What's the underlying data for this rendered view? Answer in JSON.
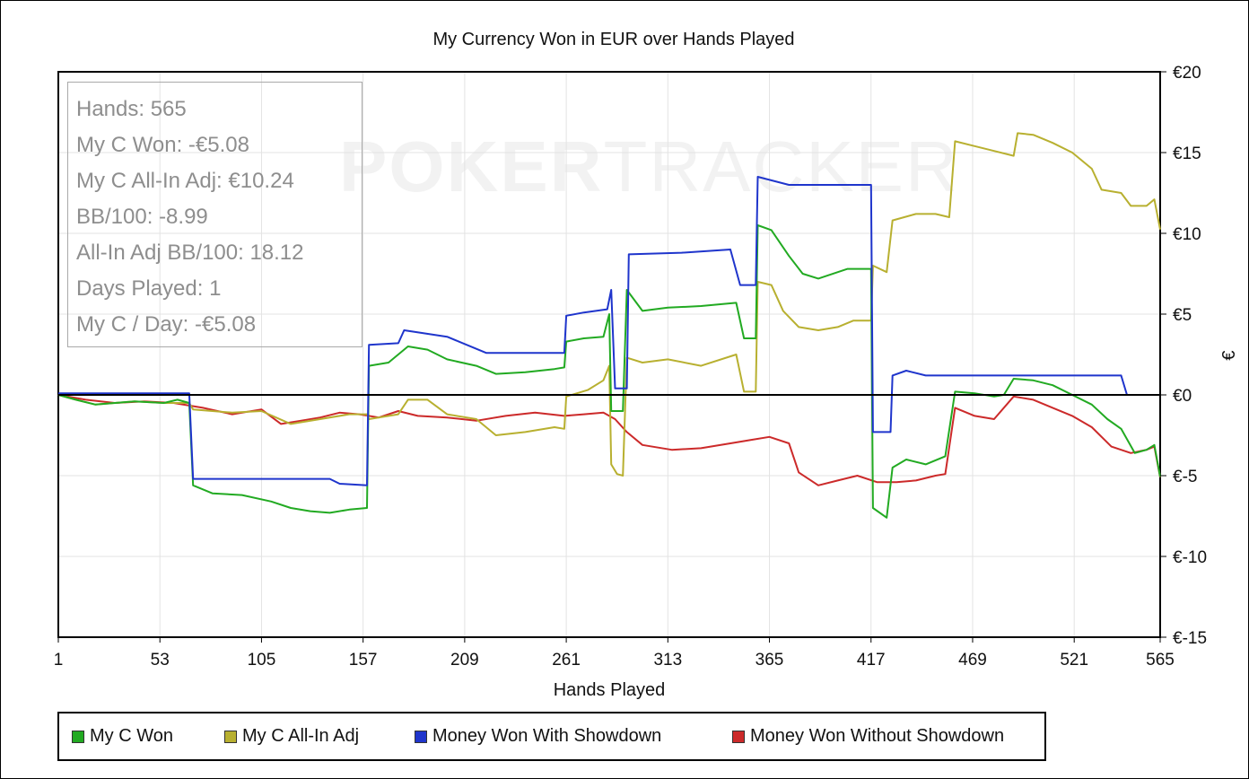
{
  "chart_data": {
    "type": "line",
    "title": "My Currency Won in EUR over Hands Played",
    "xlabel": "Hands Played",
    "ylabel": "€",
    "xlim": [
      1,
      565
    ],
    "ylim": [
      -15,
      20
    ],
    "x_ticks": [
      "1",
      "53",
      "105",
      "157",
      "209",
      "261",
      "313",
      "365",
      "417",
      "469",
      "521",
      "565"
    ],
    "y_ticks": [
      "€20",
      "€15",
      "€10",
      "€5",
      "€0",
      "€-5",
      "€-10",
      "€-15"
    ],
    "y_tick_values": [
      20,
      15,
      10,
      5,
      0,
      -5,
      -10,
      -15
    ],
    "x_tick_values": [
      1,
      53,
      105,
      157,
      209,
      261,
      313,
      365,
      417,
      469,
      521,
      565
    ],
    "grid": true,
    "legend_position": "bottom",
    "zero_line": true,
    "series": [
      {
        "name": "My C Won",
        "color": "#22aa22",
        "points": [
          [
            1,
            0
          ],
          [
            10,
            -0.3
          ],
          [
            20,
            -0.6
          ],
          [
            30,
            -0.5
          ],
          [
            40,
            -0.4
          ],
          [
            55,
            -0.5
          ],
          [
            62,
            -0.3
          ],
          [
            68,
            -0.5
          ],
          [
            70,
            -5.6
          ],
          [
            80,
            -6.1
          ],
          [
            95,
            -6.2
          ],
          [
            110,
            -6.6
          ],
          [
            120,
            -7.0
          ],
          [
            130,
            -7.2
          ],
          [
            140,
            -7.3
          ],
          [
            150,
            -7.1
          ],
          [
            159,
            -7.0
          ],
          [
            160,
            1.8
          ],
          [
            170,
            2.0
          ],
          [
            180,
            3.0
          ],
          [
            190,
            2.8
          ],
          [
            200,
            2.2
          ],
          [
            215,
            1.8
          ],
          [
            225,
            1.3
          ],
          [
            240,
            1.4
          ],
          [
            255,
            1.6
          ],
          [
            260,
            1.7
          ],
          [
            261,
            3.3
          ],
          [
            270,
            3.5
          ],
          [
            280,
            3.6
          ],
          [
            283,
            5.0
          ],
          [
            284,
            -1.0
          ],
          [
            290,
            -1.0
          ],
          [
            292,
            6.5
          ],
          [
            300,
            5.2
          ],
          [
            313,
            5.4
          ],
          [
            330,
            5.5
          ],
          [
            348,
            5.7
          ],
          [
            352,
            3.5
          ],
          [
            358,
            3.5
          ],
          [
            359,
            10.5
          ],
          [
            366,
            10.2
          ],
          [
            375,
            8.6
          ],
          [
            382,
            7.5
          ],
          [
            390,
            7.2
          ],
          [
            405,
            7.8
          ],
          [
            417,
            7.8
          ],
          [
            418,
            -7.0
          ],
          [
            425,
            -7.6
          ],
          [
            428,
            -4.5
          ],
          [
            435,
            -4.0
          ],
          [
            445,
            -4.3
          ],
          [
            455,
            -3.8
          ],
          [
            460,
            0.2
          ],
          [
            470,
            0.1
          ],
          [
            480,
            -0.1
          ],
          [
            485,
            0.0
          ],
          [
            490,
            1.0
          ],
          [
            500,
            0.9
          ],
          [
            510,
            0.6
          ],
          [
            520,
            0.0
          ],
          [
            530,
            -0.6
          ],
          [
            538,
            -1.5
          ],
          [
            545,
            -2.1
          ],
          [
            552,
            -3.6
          ],
          [
            558,
            -3.4
          ],
          [
            562,
            -3.1
          ],
          [
            565,
            -5.08
          ]
        ]
      },
      {
        "name": "My C All-In Adj",
        "color": "#b8b030",
        "points": [
          [
            1,
            0
          ],
          [
            10,
            -0.3
          ],
          [
            20,
            -0.6
          ],
          [
            30,
            -0.5
          ],
          [
            40,
            -0.4
          ],
          [
            55,
            -0.5
          ],
          [
            68,
            -0.5
          ],
          [
            70,
            -0.9
          ],
          [
            90,
            -1.1
          ],
          [
            105,
            -1.0
          ],
          [
            120,
            -1.8
          ],
          [
            135,
            -1.5
          ],
          [
            150,
            -1.2
          ],
          [
            159,
            -1.2
          ],
          [
            160,
            -1.5
          ],
          [
            175,
            -1.2
          ],
          [
            180,
            -0.3
          ],
          [
            190,
            -0.3
          ],
          [
            200,
            -1.2
          ],
          [
            215,
            -1.5
          ],
          [
            225,
            -2.5
          ],
          [
            240,
            -2.3
          ],
          [
            255,
            -2.0
          ],
          [
            260,
            -2.1
          ],
          [
            261,
            -0.1
          ],
          [
            272,
            0.3
          ],
          [
            280,
            0.9
          ],
          [
            283,
            1.8
          ],
          [
            284,
            -4.3
          ],
          [
            287,
            -4.9
          ],
          [
            290,
            -5.0
          ],
          [
            292,
            2.3
          ],
          [
            300,
            2.0
          ],
          [
            313,
            2.2
          ],
          [
            330,
            1.8
          ],
          [
            348,
            2.5
          ],
          [
            352,
            0.2
          ],
          [
            358,
            0.2
          ],
          [
            359,
            7.0
          ],
          [
            366,
            6.8
          ],
          [
            372,
            5.2
          ],
          [
            380,
            4.2
          ],
          [
            390,
            4.0
          ],
          [
            400,
            4.2
          ],
          [
            408,
            4.6
          ],
          [
            417,
            4.6
          ],
          [
            418,
            8.0
          ],
          [
            425,
            7.6
          ],
          [
            428,
            10.8
          ],
          [
            440,
            11.2
          ],
          [
            450,
            11.2
          ],
          [
            457,
            11.0
          ],
          [
            460,
            15.7
          ],
          [
            470,
            15.4
          ],
          [
            480,
            15.1
          ],
          [
            490,
            14.8
          ],
          [
            492,
            16.2
          ],
          [
            500,
            16.1
          ],
          [
            510,
            15.6
          ],
          [
            520,
            15.0
          ],
          [
            530,
            14.0
          ],
          [
            535,
            12.7
          ],
          [
            545,
            12.5
          ],
          [
            550,
            11.7
          ],
          [
            558,
            11.7
          ],
          [
            562,
            12.1
          ],
          [
            565,
            10.24
          ]
        ]
      },
      {
        "name": "Money Won With Showdown",
        "color": "#1f35cc",
        "points": [
          [
            1,
            0.1
          ],
          [
            68,
            0.1
          ],
          [
            70,
            -5.2
          ],
          [
            140,
            -5.2
          ],
          [
            145,
            -5.5
          ],
          [
            159,
            -5.6
          ],
          [
            160,
            3.1
          ],
          [
            175,
            3.2
          ],
          [
            178,
            4.0
          ],
          [
            200,
            3.6
          ],
          [
            220,
            2.6
          ],
          [
            260,
            2.6
          ],
          [
            261,
            4.9
          ],
          [
            270,
            5.1
          ],
          [
            282,
            5.3
          ],
          [
            284,
            6.5
          ],
          [
            286,
            0.4
          ],
          [
            292,
            0.4
          ],
          [
            293,
            8.7
          ],
          [
            320,
            8.8
          ],
          [
            345,
            9.0
          ],
          [
            350,
            6.8
          ],
          [
            358,
            6.8
          ],
          [
            359,
            13.5
          ],
          [
            375,
            13.0
          ],
          [
            417,
            13.0
          ],
          [
            418,
            -2.3
          ],
          [
            427,
            -2.3
          ],
          [
            428,
            1.2
          ],
          [
            435,
            1.5
          ],
          [
            445,
            1.2
          ],
          [
            545,
            1.2
          ],
          [
            548,
            0.0
          ],
          [
            565,
            0.0
          ]
        ]
      },
      {
        "name": "Money Won Without Showdown",
        "color": "#cc2a2a",
        "points": [
          [
            1,
            0
          ],
          [
            15,
            -0.3
          ],
          [
            30,
            -0.5
          ],
          [
            45,
            -0.4
          ],
          [
            60,
            -0.5
          ],
          [
            75,
            -0.8
          ],
          [
            90,
            -1.2
          ],
          [
            105,
            -0.9
          ],
          [
            115,
            -1.8
          ],
          [
            125,
            -1.6
          ],
          [
            135,
            -1.4
          ],
          [
            145,
            -1.1
          ],
          [
            155,
            -1.2
          ],
          [
            165,
            -1.4
          ],
          [
            175,
            -1.0
          ],
          [
            185,
            -1.3
          ],
          [
            200,
            -1.4
          ],
          [
            215,
            -1.6
          ],
          [
            230,
            -1.3
          ],
          [
            245,
            -1.1
          ],
          [
            260,
            -1.3
          ],
          [
            270,
            -1.2
          ],
          [
            280,
            -1.1
          ],
          [
            286,
            -1.5
          ],
          [
            292,
            -2.3
          ],
          [
            300,
            -3.1
          ],
          [
            315,
            -3.4
          ],
          [
            330,
            -3.3
          ],
          [
            345,
            -3.0
          ],
          [
            355,
            -2.8
          ],
          [
            365,
            -2.6
          ],
          [
            375,
            -3.0
          ],
          [
            380,
            -4.8
          ],
          [
            390,
            -5.6
          ],
          [
            400,
            -5.3
          ],
          [
            410,
            -5.0
          ],
          [
            420,
            -5.4
          ],
          [
            430,
            -5.4
          ],
          [
            440,
            -5.3
          ],
          [
            450,
            -5.0
          ],
          [
            455,
            -4.9
          ],
          [
            460,
            -0.8
          ],
          [
            470,
            -1.3
          ],
          [
            480,
            -1.5
          ],
          [
            490,
            -0.1
          ],
          [
            500,
            -0.3
          ],
          [
            510,
            -0.8
          ],
          [
            520,
            -1.3
          ],
          [
            530,
            -2.0
          ],
          [
            540,
            -3.2
          ],
          [
            550,
            -3.6
          ],
          [
            558,
            -3.4
          ],
          [
            562,
            -3.2
          ],
          [
            565,
            -5.1
          ]
        ]
      }
    ]
  },
  "stats": [
    "Hands: 565",
    "My C Won: -€5.08",
    "My C All-In Adj: €10.24",
    "BB/100: -8.99",
    "All-In Adj BB/100: 18.12",
    "Days Played: 1",
    "My C / Day: -€5.08"
  ],
  "watermark": {
    "bold": "POKER",
    "light": "TRACKER"
  },
  "legend": [
    {
      "label": "My C Won",
      "color": "#22aa22"
    },
    {
      "label": "My C All-In Adj",
      "color": "#b8b030"
    },
    {
      "label": "Money Won With Showdown",
      "color": "#1f35cc"
    },
    {
      "label": "Money Won Without Showdown",
      "color": "#cc2a2a"
    }
  ]
}
